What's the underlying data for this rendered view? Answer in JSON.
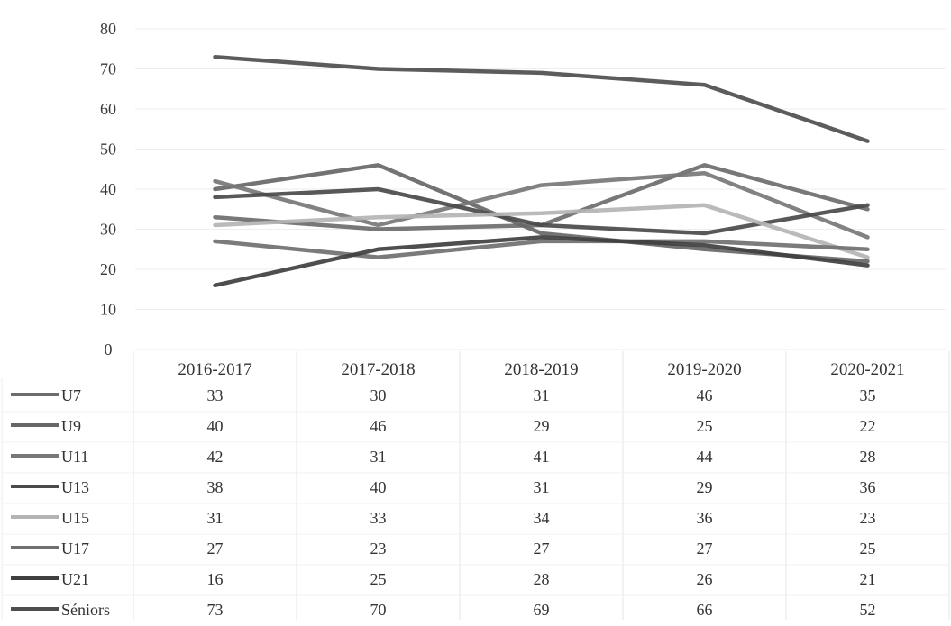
{
  "chart_data": {
    "type": "line",
    "title": "",
    "xlabel": "",
    "ylabel": "",
    "categories": [
      "2016-2017",
      "2017-2018",
      "2018-2019",
      "2019-2020",
      "2020-2021"
    ],
    "ylim": [
      0,
      80
    ],
    "yticks": [
      0,
      10,
      20,
      30,
      40,
      50,
      60,
      70,
      80
    ],
    "grid": true,
    "legend_placement": "data-table-left",
    "data_table": true,
    "series": [
      {
        "name": "U7",
        "color": "#6d6d6d",
        "values": [
          33,
          30,
          31,
          46,
          35
        ]
      },
      {
        "name": "U9",
        "color": "#676767",
        "values": [
          40,
          46,
          29,
          25,
          22
        ]
      },
      {
        "name": "U11",
        "color": "#777777",
        "values": [
          42,
          31,
          41,
          44,
          28
        ]
      },
      {
        "name": "U13",
        "color": "#4a4a4a",
        "values": [
          38,
          40,
          31,
          29,
          36
        ]
      },
      {
        "name": "U15",
        "color": "#b4b4b4",
        "values": [
          31,
          33,
          34,
          36,
          23
        ]
      },
      {
        "name": "U17",
        "color": "#707070",
        "values": [
          27,
          23,
          27,
          27,
          25
        ]
      },
      {
        "name": "U21",
        "color": "#3f3f3f",
        "values": [
          16,
          25,
          28,
          26,
          21
        ]
      },
      {
        "name": "Séniors",
        "color": "#4e4e4e",
        "values": [
          73,
          70,
          69,
          66,
          52
        ]
      }
    ]
  }
}
